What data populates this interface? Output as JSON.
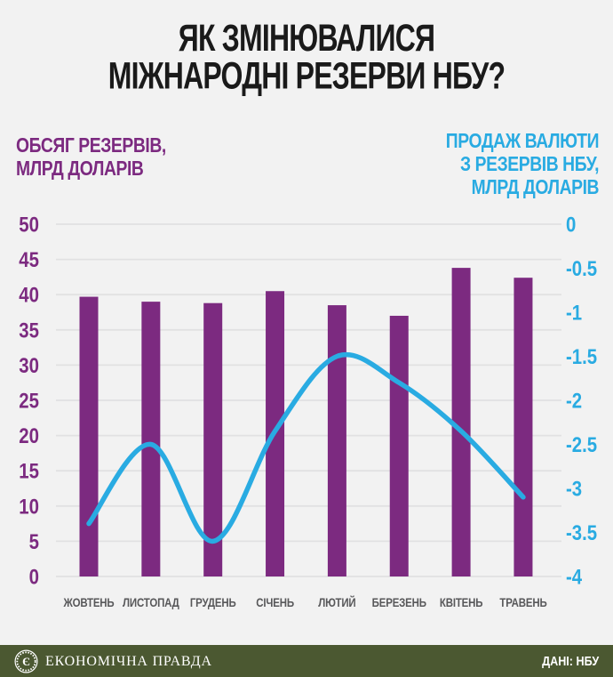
{
  "title": {
    "line1": "ЯК ЗМІНЮВАЛИСЯ",
    "line2": "МІЖНАРОДНІ РЕЗЕРВИ НБУ?"
  },
  "left_axis_title": {
    "line1": "ОБСЯГ РЕЗЕРВІВ,",
    "line2": "МЛРД ДОЛАРІВ"
  },
  "right_axis_title": {
    "line1": "ПРОДАЖ ВАЛЮТИ",
    "line2": "З РЕЗЕРВІВ НБУ,",
    "line3": "МЛРД ДОЛАРІВ"
  },
  "footer": {
    "brand": "ЕКОНОМІЧНА ПРАВДА",
    "logo_letter": "Є",
    "source": "ДАНІ: НБУ",
    "bg_color": "#4b5831"
  },
  "colors": {
    "background": "#f2f2f2",
    "bar": "#7c2a80",
    "line": "#29abe2",
    "grid": "#e1e1e2",
    "title_text": "#1a1a1a",
    "month_label": "#58585a"
  },
  "chart_data": {
    "type": "bar",
    "subtype": "bar-plus-line-dual-axis",
    "categories": [
      "ЖОВТЕНЬ",
      "ЛИСТОПАД",
      "ГРУДЕНЬ",
      "СІЧЕНЬ",
      "ЛЮТИЙ",
      "БЕРЕЗЕНЬ",
      "КВІТЕНЬ",
      "ТРАВЕНЬ"
    ],
    "series": [
      {
        "name": "ОБСЯГ РЕЗЕРВІВ, МЛРД ДОЛАРІВ",
        "type": "bar",
        "axis": "left",
        "color": "#7c2a80",
        "values": [
          39.7,
          39.0,
          38.8,
          40.5,
          38.5,
          37.0,
          43.8,
          42.4
        ]
      },
      {
        "name": "ПРОДАЖ ВАЛЮТИ З РЕЗЕРВІВ НБУ, МЛРД ДОЛАРІВ",
        "type": "line",
        "axis": "right",
        "color": "#29abe2",
        "values": [
          -3.4,
          -2.5,
          -3.6,
          -2.35,
          -1.5,
          -1.8,
          -2.35,
          -3.1
        ]
      }
    ],
    "left_axis": {
      "min": 0,
      "max": 50,
      "step": 5,
      "tick_labels": [
        "50",
        "45",
        "40",
        "35",
        "30",
        "25",
        "20",
        "15",
        "10",
        "5",
        "0"
      ]
    },
    "right_axis": {
      "min": -4,
      "max": 0,
      "step": 0.5,
      "tick_labels": [
        "0",
        "-0.5",
        "-1",
        "-1.5",
        "-2",
        "-2.5",
        "-3",
        "-3.5",
        "-4"
      ]
    },
    "grid": true,
    "legend_position": "none"
  }
}
